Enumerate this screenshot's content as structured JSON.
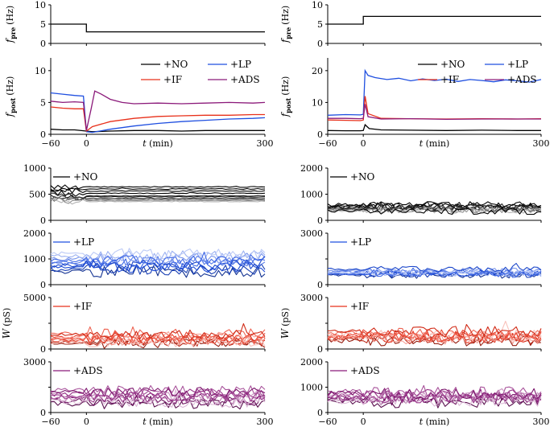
{
  "figure_description_free": true,
  "time_axis": {
    "label_italic": "t",
    "label_rest": "(min)",
    "ticks": [
      -60,
      0,
      300
    ],
    "tick_labels": [
      "−60",
      "0",
      "300"
    ],
    "range": [
      -60,
      300
    ]
  },
  "ylabels": {
    "fpre_italic": "f",
    "fpre_sub": "pre",
    "fpre_unit": "(Hz)",
    "fpost_italic": "f",
    "fpost_sub": "post",
    "fpost_unit": "(Hz)",
    "w_italic": "W",
    "w_unit": "(pS)"
  },
  "legend": {
    "no": "+NO",
    "lp": "+LP",
    "if": "+IF",
    "ads": "+ADS"
  },
  "colors": {
    "no": "#000000",
    "lp": "#1f4fe0",
    "if": "#e8301a",
    "ads": "#8b1a7a"
  },
  "chart_data": [
    {
      "id": "fpre_left",
      "type": "line",
      "ylabel": "f_pre (Hz)",
      "ylim": [
        0,
        10
      ],
      "yticks": [
        0,
        5,
        10
      ],
      "ytick_labels": [
        "0",
        "5",
        "10"
      ],
      "series": [
        {
          "name": "f_pre",
          "color": "#000000",
          "x": [
            -60,
            0,
            0,
            300
          ],
          "y": [
            5,
            5,
            3,
            3
          ]
        }
      ]
    },
    {
      "id": "fpre_right",
      "type": "line",
      "ylabel": "f_pre (Hz)",
      "ylim": [
        0,
        10
      ],
      "yticks": [
        0,
        5,
        10
      ],
      "ytick_labels": [
        "0",
        "5",
        "10"
      ],
      "series": [
        {
          "name": "f_pre",
          "color": "#000000",
          "x": [
            -60,
            0,
            0,
            300
          ],
          "y": [
            5,
            5,
            7,
            7
          ]
        }
      ]
    },
    {
      "id": "fpost_left",
      "type": "line",
      "ylabel": "f_post (Hz)",
      "ylim": [
        0,
        12
      ],
      "yticks": [
        0,
        5,
        10
      ],
      "ytick_labels": [
        "0",
        "5",
        "10"
      ],
      "series": [
        {
          "name": "+NO",
          "color": "#000000",
          "x": [
            -60,
            -40,
            -20,
            0,
            10,
            40,
            80,
            120,
            160,
            200,
            240,
            280,
            300
          ],
          "y": [
            0.8,
            0.7,
            0.7,
            0.5,
            0.4,
            0.5,
            0.6,
            0.6,
            0.5,
            0.6,
            0.6,
            0.6,
            0.6
          ]
        },
        {
          "name": "+LP",
          "color": "#1f4fe0",
          "x": [
            -60,
            -40,
            -20,
            -5,
            0,
            10,
            40,
            80,
            120,
            160,
            200,
            240,
            280,
            300
          ],
          "y": [
            6.5,
            6.3,
            6.1,
            6.0,
            0.4,
            0.3,
            0.8,
            1.3,
            1.7,
            2.0,
            2.2,
            2.4,
            2.5,
            2.6
          ]
        },
        {
          "name": "+IF",
          "color": "#e8301a",
          "x": [
            -60,
            -40,
            -20,
            -5,
            0,
            10,
            40,
            80,
            120,
            160,
            200,
            240,
            280,
            300
          ],
          "y": [
            4.3,
            4.1,
            4.0,
            4.0,
            0.5,
            1.2,
            2.0,
            2.5,
            2.8,
            2.9,
            3.0,
            3.0,
            3.1,
            3.1
          ]
        },
        {
          "name": "+ADS",
          "color": "#8b1a7a",
          "x": [
            -60,
            -40,
            -20,
            -5,
            0,
            8,
            14,
            25,
            40,
            60,
            80,
            120,
            160,
            200,
            240,
            280,
            300
          ],
          "y": [
            5.2,
            5.0,
            5.1,
            5.0,
            0.6,
            4.0,
            6.8,
            6.3,
            5.5,
            5.0,
            4.8,
            4.9,
            4.8,
            4.9,
            5.0,
            4.9,
            5.0
          ]
        }
      ]
    },
    {
      "id": "fpost_right",
      "type": "line",
      "ylabel": "f_post (Hz)",
      "ylim": [
        0,
        24
      ],
      "yticks": [
        0,
        10,
        20
      ],
      "ytick_labels": [
        "0",
        "10",
        "20"
      ],
      "series": [
        {
          "name": "+NO",
          "color": "#000000",
          "x": [
            -60,
            -30,
            -5,
            0,
            3,
            10,
            30,
            80,
            140,
            200,
            260,
            300
          ],
          "y": [
            1.2,
            1.1,
            1.1,
            1.2,
            3.0,
            1.8,
            1.4,
            1.3,
            1.2,
            1.3,
            1.2,
            1.2
          ]
        },
        {
          "name": "+LP",
          "color": "#1f4fe0",
          "x": [
            -60,
            -30,
            -5,
            0,
            3,
            8,
            20,
            40,
            60,
            80,
            100,
            120,
            140,
            160,
            180,
            200,
            220,
            240,
            260,
            280,
            300
          ],
          "y": [
            6.0,
            6.2,
            6.1,
            6.3,
            20.0,
            18.5,
            17.8,
            17.2,
            17.6,
            16.8,
            17.4,
            16.9,
            17.3,
            16.6,
            17.2,
            16.9,
            16.5,
            17.1,
            16.8,
            16.4,
            17.2
          ]
        },
        {
          "name": "+IF",
          "color": "#e8301a",
          "x": [
            -60,
            -30,
            -5,
            0,
            3,
            8,
            30,
            80,
            140,
            200,
            260,
            300
          ],
          "y": [
            4.5,
            4.4,
            4.3,
            4.5,
            12.0,
            6.5,
            5.0,
            4.9,
            4.8,
            4.9,
            4.8,
            4.9
          ]
        },
        {
          "name": "+ADS",
          "color": "#8b1a7a",
          "x": [
            -60,
            -30,
            -5,
            0,
            3,
            8,
            30,
            80,
            140,
            200,
            260,
            300
          ],
          "y": [
            5.0,
            5.0,
            4.9,
            5.0,
            9.5,
            5.5,
            4.8,
            4.9,
            4.7,
            4.8,
            4.8,
            4.8
          ]
        }
      ]
    },
    {
      "id": "w_no_left",
      "type": "line",
      "group": "+NO",
      "color": "#000000",
      "ylim": [
        0,
        1000
      ],
      "yticks": [
        0,
        500,
        1000
      ],
      "ytick_labels": [
        "0",
        "500",
        "1000"
      ],
      "series_summary": {
        "count": 10,
        "levels": [
          640,
          560,
          520,
          450,
          420,
          400,
          380,
          360,
          600,
          470
        ],
        "pre_amplitude": 60,
        "post_amplitude": 8
      }
    },
    {
      "id": "w_no_right",
      "type": "line",
      "group": "+NO",
      "color": "#000000",
      "ylim": [
        0,
        2000
      ],
      "yticks": [
        0,
        1000,
        2000
      ],
      "ytick_labels": [
        "0",
        "1000",
        "2000"
      ],
      "series_summary": {
        "count": 10,
        "levels": [
          600,
          550,
          500,
          480,
          450,
          420,
          400,
          380,
          350,
          520
        ],
        "pre_amplitude": 60,
        "post_amplitude": 120
      }
    },
    {
      "id": "w_lp_left",
      "type": "line",
      "group": "+LP",
      "color": "#1f4fe0",
      "ylim": [
        0,
        2000
      ],
      "yticks": [
        0,
        1000,
        2000
      ],
      "ytick_labels": [
        "0",
        "1000",
        "2000"
      ],
      "series_summary": {
        "count": 10,
        "levels": [
          500,
          600,
          700,
          800,
          900,
          1000,
          1100,
          1200,
          750,
          950
        ],
        "pre_amplitude": 80,
        "post_amplitude": 220
      }
    },
    {
      "id": "w_lp_right",
      "type": "line",
      "group": "+LP",
      "color": "#1f4fe0",
      "ylim": [
        0,
        3000
      ],
      "yticks": [
        0,
        1500,
        3000
      ],
      "ytick_labels": [
        "0",
        "",
        "3000"
      ],
      "series_summary": {
        "count": 10,
        "levels": [
          550,
          600,
          650,
          700,
          750,
          800,
          650,
          700,
          900,
          600
        ],
        "pre_amplitude": 60,
        "post_amplitude": 180
      }
    },
    {
      "id": "w_if_left",
      "type": "line",
      "group": "+IF",
      "color": "#e8301a",
      "ylim": [
        0,
        5000
      ],
      "yticks": [
        0,
        2500,
        5000
      ],
      "ytick_labels": [
        "0",
        "",
        "5000"
      ],
      "series_summary": {
        "count": 10,
        "levels": [
          500,
          700,
          900,
          1200,
          1500,
          800,
          1100,
          600,
          1400,
          900
        ],
        "pre_amplitude": 150,
        "post_amplitude": 450
      }
    },
    {
      "id": "w_if_right",
      "type": "line",
      "group": "+IF",
      "color": "#e8301a",
      "ylim": [
        0,
        3000
      ],
      "yticks": [
        0,
        1500,
        3000
      ],
      "ytick_labels": [
        "0",
        "",
        "3000"
      ],
      "series_summary": {
        "count": 10,
        "levels": [
          500,
          600,
          700,
          800,
          900,
          700,
          600,
          800,
          1000,
          650
        ],
        "pre_amplitude": 150,
        "post_amplitude": 320
      }
    },
    {
      "id": "w_ads_left",
      "type": "line",
      "group": "+ADS",
      "color": "#8b1a7a",
      "ylim": [
        0,
        3000
      ],
      "yticks": [
        0,
        1500,
        3000
      ],
      "ytick_labels": [
        "0",
        "",
        "3000"
      ],
      "series_summary": {
        "count": 10,
        "levels": [
          500,
          700,
          900,
          1100,
          1300,
          800,
          1000,
          600,
          1200,
          900
        ],
        "pre_amplitude": 150,
        "post_amplitude": 300
      }
    },
    {
      "id": "w_ads_right",
      "type": "line",
      "group": "+ADS",
      "color": "#8b1a7a",
      "ylim": [
        0,
        2000
      ],
      "yticks": [
        0,
        1000,
        2000
      ],
      "ytick_labels": [
        "0",
        "1000",
        "2000"
      ],
      "series_summary": {
        "count": 10,
        "levels": [
          400,
          500,
          600,
          700,
          800,
          550,
          650,
          450,
          750,
          600
        ],
        "pre_amplitude": 120,
        "post_amplitude": 220
      }
    }
  ]
}
